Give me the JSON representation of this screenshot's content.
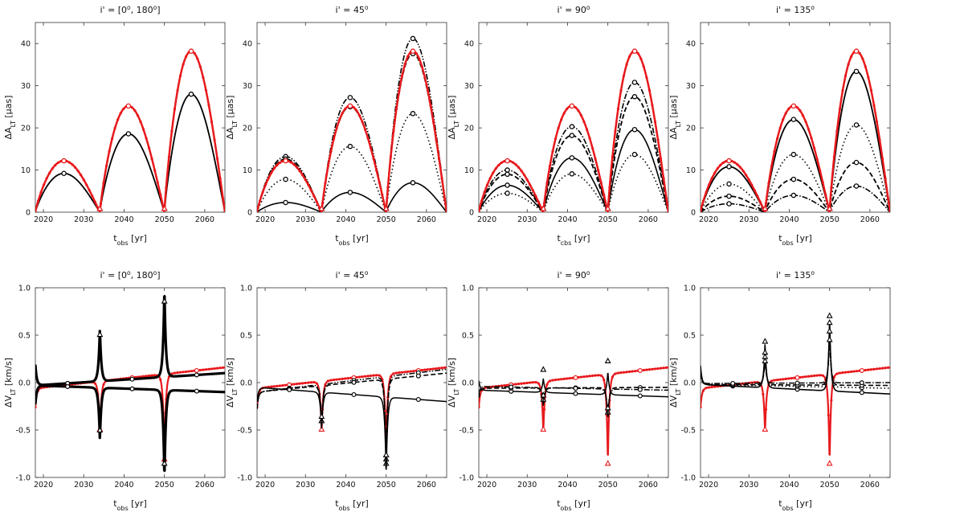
{
  "figure": {
    "colors": {
      "red": "#e8191c",
      "black": "#000000",
      "axis": "#333333"
    },
    "panels": [
      {
        "row": 0,
        "col": 0,
        "title_main": "i' = [0",
        "title_sup1": "o",
        "title_mid": ", 180",
        "title_sup2": "o",
        "title_end": "]",
        "ylabel_pre": "ΔA",
        "ylabel_sub": "LT",
        "ylabel_post": " [μas]",
        "xlabel_main": "t",
        "xlabel_sub": "obs",
        "xlabel_post": " [yr]",
        "xlim": [
          2018,
          2065
        ],
        "ylim": [
          0,
          45
        ],
        "xticks": [
          2020,
          2030,
          2040,
          2050,
          2060
        ],
        "yticks": [
          0,
          10,
          20,
          30,
          40
        ]
      },
      {
        "row": 0,
        "col": 1,
        "title_main": "i' = 45",
        "title_sup1": "o",
        "title_mid": "",
        "title_sup2": "",
        "title_end": "",
        "ylabel_pre": "ΔA",
        "ylabel_sub": "LT",
        "ylabel_post": " [μas]",
        "xlabel_main": "t",
        "xlabel_sub": "obs",
        "xlabel_post": " [yr]",
        "xlim": [
          2018,
          2065
        ],
        "ylim": [
          0,
          45
        ],
        "xticks": [
          2020,
          2030,
          2040,
          2050,
          2060
        ],
        "yticks": [
          0,
          10,
          20,
          30,
          40
        ]
      },
      {
        "row": 0,
        "col": 2,
        "title_main": "i' = 90",
        "title_sup1": "o",
        "title_mid": "",
        "title_sup2": "",
        "title_end": "",
        "ylabel_pre": "ΔA",
        "ylabel_sub": "LT",
        "ylabel_post": " [μas]",
        "xlabel_main": "t",
        "xlabel_sub": "cbs",
        "xlabel_post": " [yr]",
        "xlim": [
          2018,
          2065
        ],
        "ylim": [
          0,
          45
        ],
        "xticks": [
          2020,
          2030,
          2040,
          2050,
          2060
        ],
        "yticks": [
          0,
          10,
          20,
          30,
          40
        ]
      },
      {
        "row": 0,
        "col": 3,
        "title_main": "i' = 135",
        "title_sup1": "o",
        "title_mid": "",
        "title_sup2": "",
        "title_end": "",
        "ylabel_pre": "ΔA",
        "ylabel_sub": "LT",
        "ylabel_post": " [μas]",
        "xlabel_main": "t",
        "xlabel_sub": "obs",
        "xlabel_post": " [yr]",
        "xlim": [
          2018,
          2065
        ],
        "ylim": [
          0,
          45
        ],
        "xticks": [
          2020,
          2030,
          2040,
          2050,
          2060
        ],
        "yticks": [
          0,
          10,
          20,
          30,
          40
        ]
      },
      {
        "row": 1,
        "col": 0,
        "title_main": "i' = [0",
        "title_sup1": "o",
        "title_mid": ", 180",
        "title_sup2": "o",
        "title_end": "]",
        "ylabel_pre": "ΔV",
        "ylabel_sub": "LT",
        "ylabel_post": " [km/s]",
        "xlabel_main": "t",
        "xlabel_sub": "obs",
        "xlabel_post": " [yr]",
        "xlim": [
          2018,
          2065
        ],
        "ylim": [
          -1,
          1
        ],
        "xticks": [
          2020,
          2030,
          2040,
          2050,
          2060
        ],
        "yticks": [
          -1.0,
          -0.5,
          0.0,
          0.5,
          1.0
        ]
      },
      {
        "row": 1,
        "col": 1,
        "title_main": "i' = 45",
        "title_sup1": "o",
        "title_mid": "",
        "title_sup2": "",
        "title_end": "",
        "ylabel_pre": "ΔV",
        "ylabel_sub": "LT",
        "ylabel_post": " [km/s]",
        "xlabel_main": "t",
        "xlabel_sub": "obs",
        "xlabel_post": " [yr]",
        "xlim": [
          2018,
          2065
        ],
        "ylim": [
          -1,
          1
        ],
        "xticks": [
          2020,
          2030,
          2040,
          2050,
          2060
        ],
        "yticks": [
          -1.0,
          -0.5,
          0.0,
          0.5,
          1.0
        ]
      },
      {
        "row": 1,
        "col": 2,
        "title_main": "i' = 90",
        "title_sup1": "o",
        "title_mid": "",
        "title_sup2": "",
        "title_end": "",
        "ylabel_pre": "ΔV",
        "ylabel_sub": "LT",
        "ylabel_post": " [km/s]",
        "xlabel_main": "t",
        "xlabel_sub": "obs",
        "xlabel_post": " [yr]",
        "xlim": [
          2018,
          2065
        ],
        "ylim": [
          -1,
          1
        ],
        "xticks": [
          2020,
          2030,
          2040,
          2050,
          2060
        ],
        "yticks": [
          -1.0,
          -0.5,
          0.0,
          0.5,
          1.0
        ]
      },
      {
        "row": 1,
        "col": 3,
        "title_main": "i' = 135",
        "title_sup1": "o",
        "title_mid": "",
        "title_sup2": "",
        "title_end": "",
        "ylabel_pre": "ΔV",
        "ylabel_sub": "LT",
        "ylabel_post": " [km/s]",
        "xlabel_main": "t",
        "xlabel_sub": "obs",
        "xlabel_post": " [yr]",
        "xlim": [
          2018,
          2065
        ],
        "ylim": [
          -1,
          1
        ],
        "xticks": [
          2020,
          2030,
          2040,
          2050,
          2060
        ],
        "yticks": [
          -1.0,
          -0.5,
          0.0,
          0.5,
          1.0
        ]
      }
    ]
  },
  "chart_data": [
    {
      "type": "line",
      "panel": 0,
      "title": "i' = [0°, 180°]",
      "xlabel": "t_obs [yr]",
      "ylabel": "ΔA_LT [μas]",
      "xlim": [
        2018,
        2065
      ],
      "ylim": [
        0,
        45
      ],
      "orbit_zeros": [
        2018,
        2034,
        2050,
        2065
      ],
      "series": [
        {
          "name": "red reference",
          "color": "red",
          "dash": "solid",
          "width": 2.5,
          "markers": "dots",
          "peaks": [
            12.2,
            25.2,
            38.2
          ]
        },
        {
          "name": "black",
          "color": "black",
          "dash": "solid",
          "width": 1.8,
          "peaks": [
            9.2,
            18.6,
            28.0
          ]
        }
      ]
    },
    {
      "type": "line",
      "panel": 1,
      "title": "i' = 45°",
      "xlabel": "t_obs [yr]",
      "ylabel": "ΔA_LT [μas]",
      "xlim": [
        2018,
        2065
      ],
      "ylim": [
        0,
        45
      ],
      "orbit_zeros": [
        2018,
        2034,
        2050,
        2065
      ],
      "series": [
        {
          "name": "red reference",
          "color": "red",
          "dash": "solid",
          "width": 2.5,
          "markers": "dots",
          "peaks": [
            12.2,
            25.2,
            38.2
          ]
        },
        {
          "name": "dash-dot-dot",
          "color": "black",
          "dash": "7,2,1.5,2,1.5,2",
          "width": 1.6,
          "peaks": [
            13.2,
            27.2,
            41.2
          ]
        },
        {
          "name": "dashed",
          "color": "black",
          "dash": "6,3",
          "width": 1.8,
          "peaks": [
            12.6,
            25.0,
            37.6
          ]
        },
        {
          "name": "dotted",
          "color": "black",
          "dash": "1.5,3",
          "width": 1.6,
          "peaks": [
            7.8,
            15.6,
            23.4
          ]
        },
        {
          "name": "solid",
          "color": "black",
          "dash": "solid",
          "width": 1.6,
          "peaks": [
            2.3,
            4.7,
            7.0
          ]
        }
      ]
    },
    {
      "type": "line",
      "panel": 2,
      "title": "i' = 90°",
      "xlabel": "t_cbs [yr]",
      "ylabel": "ΔA_LT [μas]",
      "xlim": [
        2018,
        2065
      ],
      "ylim": [
        0,
        45
      ],
      "orbit_zeros": [
        2018,
        2034,
        2050,
        2065
      ],
      "series": [
        {
          "name": "red reference",
          "color": "red",
          "dash": "solid",
          "width": 2.5,
          "markers": "dots",
          "peaks": [
            12.2,
            25.2,
            38.2
          ]
        },
        {
          "name": "dash-dot",
          "color": "black",
          "dash": "7,2,1.5,2",
          "width": 1.6,
          "peaks": [
            10.0,
            20.3,
            30.8
          ]
        },
        {
          "name": "dashed",
          "color": "black",
          "dash": "6,3",
          "width": 1.8,
          "peaks": [
            9.0,
            18.2,
            27.4
          ]
        },
        {
          "name": "solid",
          "color": "black",
          "dash": "solid",
          "width": 1.6,
          "peaks": [
            6.4,
            12.9,
            19.6
          ]
        },
        {
          "name": "dotted",
          "color": "black",
          "dash": "1.5,3",
          "width": 1.6,
          "peaks": [
            4.5,
            9.1,
            13.7
          ]
        }
      ]
    },
    {
      "type": "line",
      "panel": 3,
      "title": "i' = 135°",
      "xlabel": "t_obs [yr]",
      "ylabel": "ΔA_LT [μas]",
      "xlim": [
        2018,
        2065
      ],
      "ylim": [
        0,
        45
      ],
      "orbit_zeros": [
        2018,
        2034,
        2050,
        2065
      ],
      "series": [
        {
          "name": "red reference",
          "color": "red",
          "dash": "solid",
          "width": 2.5,
          "markers": "dots",
          "peaks": [
            12.2,
            25.2,
            38.2
          ]
        },
        {
          "name": "solid",
          "color": "black",
          "dash": "solid",
          "width": 1.8,
          "peaks": [
            10.8,
            22.0,
            33.4
          ]
        },
        {
          "name": "dotted",
          "color": "black",
          "dash": "1.5,3",
          "width": 1.6,
          "peaks": [
            6.7,
            13.7,
            20.7
          ]
        },
        {
          "name": "dashed",
          "color": "black",
          "dash": "6,3",
          "width": 1.8,
          "peaks": [
            3.8,
            7.8,
            11.8
          ]
        },
        {
          "name": "dash-dot",
          "color": "black",
          "dash": "7,2,1.5,2",
          "width": 1.6,
          "peaks": [
            2.0,
            4.0,
            6.2
          ]
        }
      ]
    },
    {
      "type": "line",
      "panel": 4,
      "title": "i' = [0°, 180°]",
      "xlabel": "t_obs [yr]",
      "ylabel": "ΔV_LT [km/s]",
      "xlim": [
        2018,
        2065
      ],
      "ylim": [
        -1,
        1
      ],
      "spikes": [
        2018,
        2034,
        2050
      ],
      "series": [
        {
          "name": "red reference",
          "color": "red",
          "dash": "solid",
          "width": 2.2,
          "markers": "dots",
          "spike_amp": [
            -0.2,
            -0.55,
            -0.9
          ],
          "baseline": [
            -0.06,
            0.16
          ]
        },
        {
          "name": "black upper",
          "color": "black",
          "dash": "solid",
          "width": 3.2,
          "spike_amp": [
            0.22,
            0.56,
            0.95
          ],
          "baseline": [
            -0.03,
            0.1
          ]
        },
        {
          "name": "black lower",
          "color": "black",
          "dash": "solid",
          "width": 3.2,
          "spike_amp": [
            -0.2,
            -0.56,
            -0.95
          ],
          "baseline": [
            -0.03,
            -0.1
          ]
        }
      ]
    },
    {
      "type": "line",
      "panel": 5,
      "title": "i' = 45°",
      "xlabel": "t_obs [yr]",
      "ylabel": "ΔV_LT [km/s]",
      "xlim": [
        2018,
        2065
      ],
      "ylim": [
        -1,
        1
      ],
      "spikes": [
        2018,
        2034,
        2050
      ],
      "series": [
        {
          "name": "red reference",
          "color": "red",
          "dash": "solid",
          "width": 2.2,
          "markers": "dots",
          "spike_amp": [
            -0.2,
            -0.55,
            -0.85
          ],
          "baseline": [
            -0.06,
            0.16
          ]
        },
        {
          "name": "dash-dot-dot",
          "color": "black",
          "dash": "7,2,1.5,2,1.5,2",
          "width": 1.5,
          "spike_amp": [
            -0.18,
            -0.45,
            -0.95
          ],
          "baseline": [
            -0.1,
            0.14
          ]
        },
        {
          "name": "dashed",
          "color": "black",
          "dash": "6,3",
          "width": 1.6,
          "spike_amp": [
            -0.17,
            -0.45,
            -0.9
          ],
          "baseline": [
            -0.1,
            0.1
          ]
        },
        {
          "name": "solid",
          "color": "black",
          "dash": "solid",
          "width": 1.5,
          "spike_amp": [
            -0.15,
            -0.4,
            -0.85
          ],
          "baseline": [
            -0.05,
            -0.2
          ]
        }
      ]
    },
    {
      "type": "line",
      "panel": 6,
      "title": "i' = 90°",
      "xlabel": "t_obs [yr]",
      "ylabel": "ΔV_LT [km/s]",
      "xlim": [
        2018,
        2065
      ],
      "ylim": [
        -1,
        1
      ],
      "spikes": [
        2018,
        2034,
        2050
      ],
      "series": [
        {
          "name": "red reference",
          "color": "red",
          "dash": "solid",
          "width": 2.2,
          "markers": "dots",
          "spike_amp": [
            -0.2,
            -0.55,
            -0.95
          ],
          "baseline": [
            -0.06,
            0.16
          ]
        },
        {
          "name": "solid",
          "color": "black",
          "dash": "solid",
          "width": 1.5,
          "spike_amp": [
            0.1,
            0.15,
            0.25
          ],
          "baseline": [
            -0.08,
            -0.15
          ]
        },
        {
          "name": "dashed",
          "color": "black",
          "dash": "6,3",
          "width": 1.6,
          "spike_amp": [
            -0.1,
            -0.2,
            -0.35
          ],
          "baseline": [
            -0.06,
            -0.05
          ]
        },
        {
          "name": "dash-dot",
          "color": "black",
          "dash": "7,2,1.5,2",
          "width": 1.5,
          "spike_amp": [
            -0.08,
            -0.15,
            -0.3
          ],
          "baseline": [
            -0.04,
            -0.08
          ]
        }
      ]
    },
    {
      "type": "line",
      "panel": 7,
      "title": "i' = 135°",
      "xlabel": "t_obs [yr]",
      "ylabel": "ΔV_LT [km/s]",
      "xlim": [
        2018,
        2065
      ],
      "ylim": [
        -1,
        1
      ],
      "spikes": [
        2018,
        2034,
        2050
      ],
      "series": [
        {
          "name": "red reference",
          "color": "red",
          "dash": "solid",
          "width": 2.2,
          "markers": "dots",
          "spike_amp": [
            -0.2,
            -0.55,
            -0.95
          ],
          "baseline": [
            -0.06,
            0.16
          ]
        },
        {
          "name": "solid",
          "color": "black",
          "dash": "solid",
          "width": 1.6,
          "spike_amp": [
            0.2,
            0.48,
            0.78
          ],
          "baseline": [
            -0.02,
            -0.12
          ]
        },
        {
          "name": "dotted",
          "color": "black",
          "dash": "1.5,3",
          "width": 1.5,
          "spike_amp": [
            0.15,
            0.35,
            0.7
          ],
          "baseline": [
            -0.02,
            -0.06
          ]
        },
        {
          "name": "dashed",
          "color": "black",
          "dash": "6,3",
          "width": 1.6,
          "spike_amp": [
            0.12,
            0.3,
            0.6
          ],
          "baseline": [
            -0.02,
            -0.03
          ]
        },
        {
          "name": "dash-dot",
          "color": "black",
          "dash": "7,2,1.5,2",
          "width": 1.5,
          "spike_amp": [
            0.1,
            0.25,
            0.5
          ],
          "baseline": [
            -0.01,
            0.0
          ]
        }
      ]
    }
  ]
}
